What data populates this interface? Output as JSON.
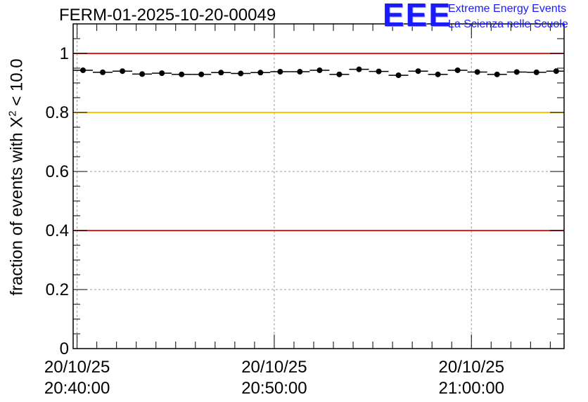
{
  "title": "FERM-01-2025-10-20-00049",
  "logo": {
    "mark": "EEE",
    "line1": "Extreme Energy Events",
    "line2": "La Scienza nelle Scuole"
  },
  "colors": {
    "red_line": "#e8201a",
    "yellow_line": "#ffc200",
    "data": "#000000",
    "grid": "#999999",
    "logo": "#1a1aff"
  },
  "chart_data": {
    "type": "scatter",
    "title": "FERM-01-2025-10-20-00049",
    "xlabel": "",
    "ylabel_prefix": "fraction of events with ",
    "ylabel_symbol": "X",
    "ylabel_exp": "2",
    "ylabel_suffix": " < 10.0",
    "x_unit": "minutes since 20:40:00",
    "xlim": [
      -0.2,
      24.7
    ],
    "ylim": [
      0,
      1.1
    ],
    "y_ticks": [
      0,
      0.2,
      0.4,
      0.6,
      0.8,
      1
    ],
    "y_tick_labels": [
      "0",
      "0.2",
      "0.4",
      "0.6",
      "0.8",
      "1"
    ],
    "x_ticks": [
      {
        "value": 0,
        "date": "20/10/25",
        "time": "20:40:00"
      },
      {
        "value": 10,
        "date": "20/10/25",
        "time": "20:50:00"
      },
      {
        "value": 20,
        "date": "20/10/25",
        "time": "21:00:00"
      }
    ],
    "grid": true,
    "reference_lines": [
      {
        "y": 1.0,
        "color": "red"
      },
      {
        "y": 0.8,
        "color": "yellow"
      },
      {
        "y": 0.4,
        "color": "red"
      }
    ],
    "bin_width": 1,
    "series": [
      {
        "name": "fraction",
        "x": [
          0.3,
          1.3,
          2.3,
          3.3,
          4.3,
          5.3,
          6.3,
          7.3,
          8.3,
          9.3,
          10.3,
          11.3,
          12.3,
          13.3,
          14.3,
          15.3,
          16.3,
          17.3,
          18.3,
          19.3,
          20.3,
          21.3,
          22.3,
          23.3,
          24.3
        ],
        "y": [
          0.943,
          0.936,
          0.94,
          0.93,
          0.933,
          0.929,
          0.929,
          0.935,
          0.932,
          0.935,
          0.938,
          0.938,
          0.943,
          0.929,
          0.946,
          0.939,
          0.926,
          0.94,
          0.929,
          0.943,
          0.937,
          0.929,
          0.937,
          0.936,
          0.94
        ]
      }
    ]
  }
}
